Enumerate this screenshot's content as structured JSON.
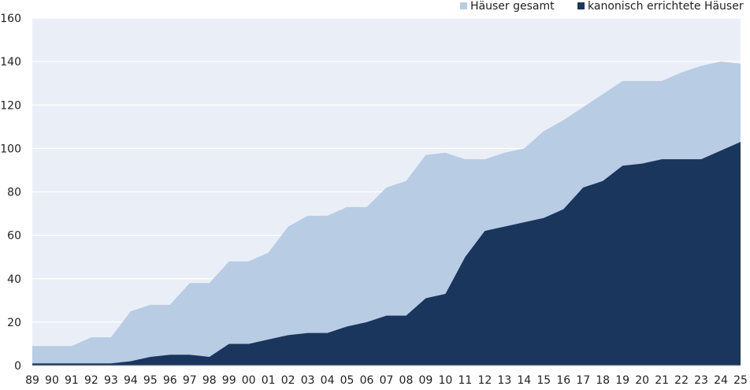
{
  "chart_data": {
    "type": "area",
    "title": "",
    "xlabel": "",
    "ylabel": "",
    "ylim": [
      0,
      160
    ],
    "yticks": [
      0,
      20,
      40,
      60,
      80,
      100,
      120,
      140,
      160
    ],
    "grid": true,
    "legend_position": "top-right",
    "categories": [
      "89",
      "90",
      "91",
      "92",
      "93",
      "94",
      "95",
      "96",
      "97",
      "98",
      "99",
      "00",
      "01",
      "02",
      "03",
      "04",
      "05",
      "06",
      "07",
      "08",
      "09",
      "10",
      "11",
      "12",
      "13",
      "14",
      "15",
      "16",
      "17",
      "18",
      "19",
      "20",
      "21",
      "22",
      "23",
      "24",
      "25"
    ],
    "series": [
      {
        "name": "Häuser gesamt",
        "color": "#b8cce4",
        "values": [
          9,
          9,
          9,
          13,
          13,
          25,
          28,
          28,
          38,
          38,
          48,
          48,
          52,
          64,
          69,
          69,
          73,
          73,
          82,
          85,
          97,
          98,
          95,
          95,
          98,
          100,
          108,
          113,
          119,
          125,
          131,
          131,
          131,
          135,
          138,
          140,
          139
        ]
      },
      {
        "name": "kanonisch errichtete Häuser",
        "color": "#1b365d",
        "values": [
          1,
          1,
          1,
          1,
          1,
          2,
          4,
          5,
          5,
          4,
          10,
          10,
          12,
          14,
          15,
          15,
          18,
          20,
          23,
          23,
          31,
          33,
          50,
          62,
          64,
          66,
          68,
          72,
          82,
          85,
          92,
          93,
          95,
          95,
          95,
          99,
          103
        ]
      }
    ]
  },
  "style": {
    "plot_background": "#eaeff7",
    "gridline_color": "#ffffff",
    "text_color": "#222222"
  }
}
